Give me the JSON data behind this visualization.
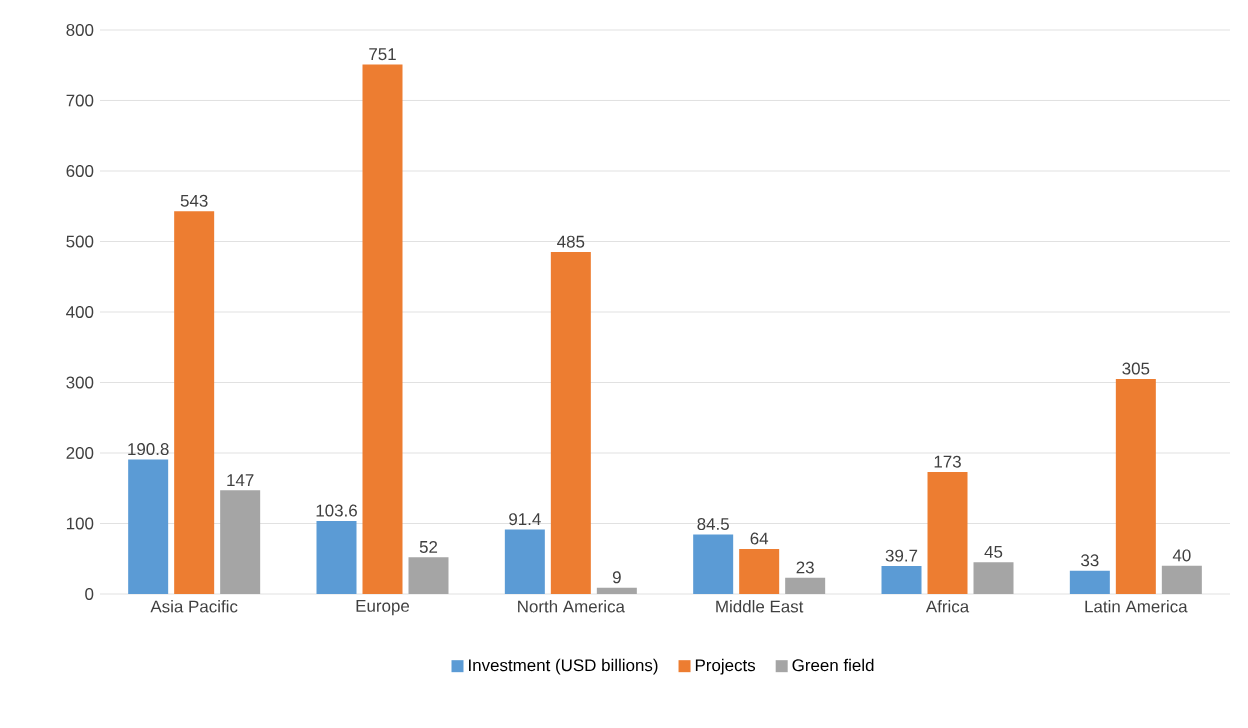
{
  "chart_data": {
    "type": "bar",
    "categories": [
      "Asia Pacific",
      "Europe",
      "North America",
      "Middle East",
      "Africa",
      "Latin America"
    ],
    "series": [
      {
        "name": "Investment (USD billions)",
        "color": "#5b9bd5",
        "values": [
          190.8,
          103.6,
          91.4,
          84.5,
          39.7,
          33
        ]
      },
      {
        "name": "Projects",
        "color": "#ed7d31",
        "values": [
          543,
          751,
          485,
          64,
          173,
          305
        ]
      },
      {
        "name": "Green field",
        "color": "#a5a5a5",
        "values": [
          147,
          52,
          9,
          23,
          45,
          40
        ]
      }
    ],
    "ylim": [
      0,
      800
    ],
    "yticks": [
      0,
      100,
      200,
      300,
      400,
      500,
      600,
      700,
      800
    ],
    "grid": "y",
    "legend": "bottom",
    "data_labels": true
  }
}
